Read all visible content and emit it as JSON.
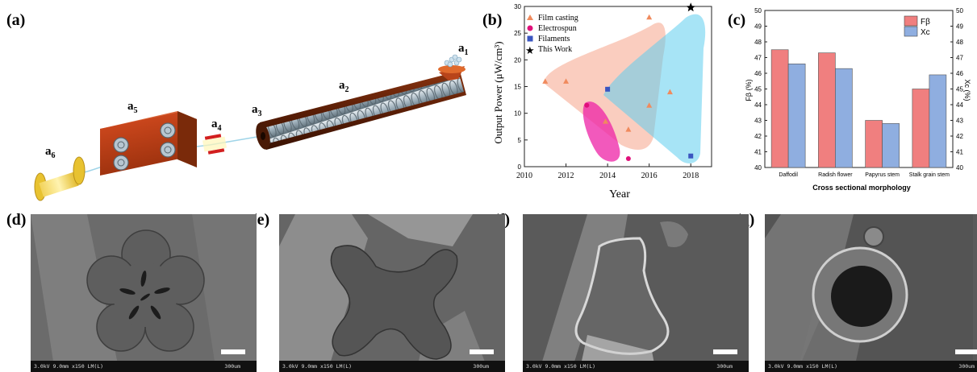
{
  "panels": {
    "a": "(a)",
    "b": "(b)",
    "c": "(c)",
    "d": "(d)",
    "e": "(e)",
    "f": "(f)",
    "g": "(g)"
  },
  "schematic": {
    "labels": [
      {
        "base": "a",
        "sub": "1"
      },
      {
        "base": "a",
        "sub": "2"
      },
      {
        "base": "a",
        "sub": "3"
      },
      {
        "base": "a",
        "sub": "4"
      },
      {
        "base": "a",
        "sub": "5"
      },
      {
        "base": "a",
        "sub": "6"
      }
    ]
  },
  "chart_data": [
    {
      "type": "scatter",
      "panel": "(b)",
      "xlabel": "Year",
      "ylabel": "Output Power (μW/cm³)",
      "xlim": [
        2010,
        2019
      ],
      "ylim": [
        0,
        30
      ],
      "xticks": [
        "2010",
        "2012",
        "2014",
        "2016",
        "2018"
      ],
      "yticks": [
        "0",
        "5",
        "10",
        "15",
        "20",
        "25",
        "30"
      ],
      "legend_position": "top-left",
      "series": [
        {
          "name": "Film casting",
          "marker": "triangle",
          "color": "#f08a5d",
          "points": [
            [
              2011,
              16
            ],
            [
              2012,
              16
            ],
            [
              2013.9,
              8.5
            ],
            [
              2015,
              7
            ],
            [
              2016,
              28
            ],
            [
              2016,
              11.5
            ],
            [
              2017,
              14
            ]
          ]
        },
        {
          "name": "Electrospun",
          "marker": "circle",
          "color": "#e0107a",
          "points": [
            [
              2013,
              11.5
            ],
            [
              2015,
              1.5
            ]
          ]
        },
        {
          "name": "Filaments",
          "marker": "square",
          "color": "#3a55c0",
          "points": [
            [
              2014,
              14.5
            ],
            [
              2018,
              2
            ]
          ]
        },
        {
          "name": "This Work",
          "marker": "star",
          "color": "#000000",
          "points": [
            [
              2018,
              29.8
            ]
          ]
        }
      ],
      "regions": [
        {
          "name": "film-casting-region",
          "color": "#f6a48a"
        },
        {
          "name": "electrospun-region",
          "color": "#ee44b0"
        },
        {
          "name": "filaments-region",
          "color": "#7fd6f0"
        }
      ]
    },
    {
      "type": "bar",
      "panel": "(c)",
      "xlabel": "Cross sectional morphology",
      "ylabel_left": "Fβ (%)",
      "ylabel_right": "Xc (%)",
      "ylim": [
        40,
        50
      ],
      "yticks": [
        "40",
        "41",
        "42",
        "43",
        "44",
        "45",
        "46",
        "47",
        "48",
        "49",
        "50"
      ],
      "categories": [
        "Daffodil",
        "Radish flower",
        "Papyrus stem",
        "Stalk grain stem"
      ],
      "legend_position": "top-right",
      "series": [
        {
          "name": "Fβ",
          "color": "#f07f7f",
          "values": [
            47.5,
            47.3,
            43.0,
            45.0
          ]
        },
        {
          "name": "Xc",
          "color": "#8faee0",
          "values": [
            46.6,
            46.3,
            42.8,
            45.9
          ]
        }
      ]
    }
  ],
  "sem_images": [
    {
      "panel": "(d)",
      "info": "3.0kV 9.0mm x150 LM(L)",
      "scale": "300um"
    },
    {
      "panel": "(e)",
      "info": "3.0kV 9.0mm x150 LM(L)",
      "scale": "300um"
    },
    {
      "panel": "(f)",
      "info": "3.0kV 9.0mm x150 LM(L)",
      "scale": "300um"
    },
    {
      "panel": "(g)",
      "info": "3.0kV 9.0mm x150 LM(L)",
      "scale": "300um"
    }
  ]
}
